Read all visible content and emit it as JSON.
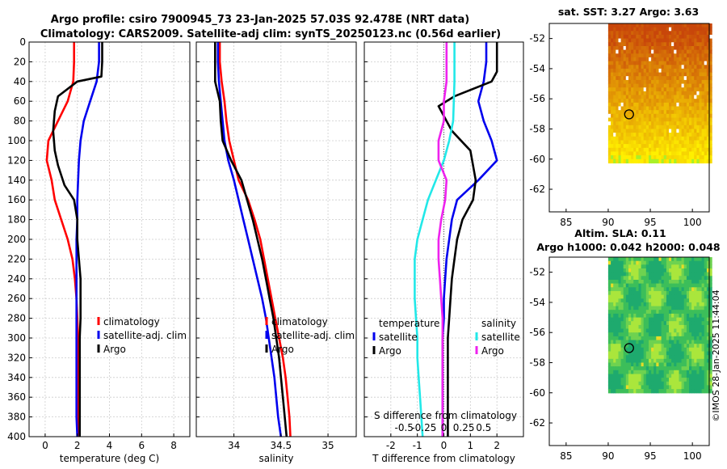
{
  "title_line1": "Argo profile: csiro 7900945_73 23-Jan-2025 57.03S 92.478E (NRT data)",
  "title_line2": "Climatology: CARS2009. Satellite-adj clim: synTS_20250123.nc (0.56d earlier)",
  "colors": {
    "climatology": "#ff0000",
    "satellite": "#0000ee",
    "argo": "#000000",
    "sal_diff": "#22e8e8",
    "sal_sat": "#ee22ee",
    "grid": "#cccccc"
  },
  "chart_data": [
    {
      "type": "line",
      "name": "temperature",
      "xlabel": "temperature (deg C)",
      "ylabel": "",
      "xlim": [
        -1,
        9
      ],
      "ylim": [
        400,
        0
      ],
      "xticks": [
        0,
        2,
        4,
        6,
        8
      ],
      "yticks": [
        0,
        20,
        40,
        60,
        80,
        100,
        120,
        140,
        160,
        180,
        200,
        220,
        240,
        260,
        280,
        300,
        320,
        340,
        360,
        380,
        400
      ],
      "legend": [
        "climatology",
        "satellite-adj. clim",
        "Argo"
      ],
      "legend_position": "lower-right",
      "series": [
        {
          "name": "climatology",
          "color": "#ff0000",
          "points": [
            [
              1.8,
              0
            ],
            [
              1.8,
              20
            ],
            [
              1.75,
              40
            ],
            [
              1.4,
              60
            ],
            [
              0.8,
              80
            ],
            [
              0.2,
              100
            ],
            [
              0.1,
              120
            ],
            [
              0.4,
              140
            ],
            [
              0.6,
              160
            ],
            [
              1.0,
              180
            ],
            [
              1.4,
              200
            ],
            [
              1.7,
              220
            ],
            [
              1.85,
              240
            ],
            [
              1.95,
              260
            ],
            [
              2.0,
              280
            ],
            [
              2.05,
              300
            ],
            [
              2.05,
              320
            ],
            [
              2.05,
              340
            ],
            [
              2.05,
              360
            ],
            [
              2.05,
              380
            ],
            [
              2.05,
              400
            ]
          ]
        },
        {
          "name": "satellite-adj. clim",
          "color": "#0000ee",
          "points": [
            [
              3.35,
              0
            ],
            [
              3.35,
              20
            ],
            [
              3.2,
              40
            ],
            [
              2.8,
              60
            ],
            [
              2.4,
              80
            ],
            [
              2.2,
              100
            ],
            [
              2.1,
              120
            ],
            [
              2.05,
              140
            ],
            [
              2.0,
              160
            ],
            [
              2.0,
              180
            ],
            [
              1.95,
              200
            ],
            [
              1.95,
              220
            ],
            [
              1.95,
              240
            ],
            [
              1.95,
              260
            ],
            [
              1.95,
              280
            ],
            [
              1.95,
              300
            ],
            [
              1.95,
              320
            ],
            [
              1.95,
              340
            ],
            [
              1.95,
              360
            ],
            [
              1.95,
              380
            ],
            [
              2.0,
              400
            ]
          ]
        },
        {
          "name": "Argo",
          "color": "#000000",
          "points": [
            [
              3.55,
              0
            ],
            [
              3.55,
              20
            ],
            [
              3.5,
              35
            ],
            [
              2.0,
              40
            ],
            [
              0.8,
              55
            ],
            [
              0.6,
              70
            ],
            [
              0.5,
              90
            ],
            [
              0.6,
              110
            ],
            [
              0.8,
              125
            ],
            [
              1.2,
              145
            ],
            [
              1.8,
              160
            ],
            [
              2.0,
              180
            ],
            [
              2.0,
              200
            ],
            [
              2.1,
              220
            ],
            [
              2.2,
              240
            ],
            [
              2.2,
              260
            ],
            [
              2.2,
              280
            ],
            [
              2.15,
              300
            ],
            [
              2.15,
              320
            ],
            [
              2.15,
              340
            ],
            [
              2.15,
              360
            ],
            [
              2.15,
              380
            ],
            [
              2.15,
              400
            ]
          ]
        }
      ]
    },
    {
      "type": "line",
      "name": "salinity",
      "xlabel": "salinity",
      "xlim": [
        33.6,
        35.3
      ],
      "ylim": [
        400,
        0
      ],
      "xticks": [
        34,
        34.5,
        35
      ],
      "legend": [
        "climatology",
        "satellite-adj. clim",
        "Argo"
      ],
      "legend_position": "lower-right",
      "series": [
        {
          "name": "climatology",
          "color": "#ff0000",
          "points": [
            [
              33.85,
              0
            ],
            [
              33.85,
              20
            ],
            [
              33.87,
              40
            ],
            [
              33.9,
              60
            ],
            [
              33.92,
              80
            ],
            [
              33.95,
              100
            ],
            [
              34.0,
              120
            ],
            [
              34.05,
              140
            ],
            [
              34.15,
              160
            ],
            [
              34.22,
              180
            ],
            [
              34.28,
              200
            ],
            [
              34.32,
              220
            ],
            [
              34.36,
              240
            ],
            [
              34.4,
              260
            ],
            [
              34.44,
              280
            ],
            [
              34.48,
              300
            ],
            [
              34.52,
              320
            ],
            [
              34.55,
              340
            ],
            [
              34.57,
              360
            ],
            [
              34.59,
              380
            ],
            [
              34.6,
              400
            ]
          ]
        },
        {
          "name": "satellite-adj. clim",
          "color": "#0000ee",
          "points": [
            [
              33.83,
              0
            ],
            [
              33.83,
              20
            ],
            [
              33.84,
              40
            ],
            [
              33.86,
              60
            ],
            [
              33.88,
              80
            ],
            [
              33.9,
              100
            ],
            [
              33.94,
              120
            ],
            [
              34.0,
              140
            ],
            [
              34.05,
              160
            ],
            [
              34.1,
              180
            ],
            [
              34.15,
              200
            ],
            [
              34.2,
              220
            ],
            [
              34.25,
              240
            ],
            [
              34.3,
              260
            ],
            [
              34.34,
              280
            ],
            [
              34.37,
              300
            ],
            [
              34.4,
              320
            ],
            [
              34.43,
              340
            ],
            [
              34.45,
              360
            ],
            [
              34.47,
              380
            ],
            [
              34.5,
              400
            ]
          ]
        },
        {
          "name": "Argo",
          "color": "#000000",
          "points": [
            [
              33.8,
              0
            ],
            [
              33.8,
              20
            ],
            [
              33.8,
              40
            ],
            [
              33.85,
              60
            ],
            [
              33.86,
              80
            ],
            [
              33.88,
              100
            ],
            [
              33.97,
              120
            ],
            [
              34.08,
              140
            ],
            [
              34.14,
              160
            ],
            [
              34.2,
              180
            ],
            [
              34.25,
              200
            ],
            [
              34.3,
              220
            ],
            [
              34.34,
              240
            ],
            [
              34.38,
              260
            ],
            [
              34.42,
              280
            ],
            [
              34.45,
              300
            ],
            [
              34.48,
              320
            ],
            [
              34.5,
              340
            ],
            [
              34.52,
              360
            ],
            [
              34.54,
              380
            ],
            [
              34.56,
              400
            ]
          ]
        }
      ]
    },
    {
      "type": "line",
      "name": "difference",
      "xlabel": "T difference from climatology",
      "xlabel2": "S difference from climatology",
      "xlim": [
        -3,
        3
      ],
      "ylim": [
        400,
        0
      ],
      "xticks": [
        -2,
        -1,
        0,
        1,
        2
      ],
      "xticks2": [
        "-0.5",
        "-0.25",
        "0",
        "0.25",
        "0.5"
      ],
      "legend_left_title": "temperature",
      "legend_right_title": "salinity",
      "legend_left": [
        "satellite",
        "Argo"
      ],
      "legend_right": [
        "satellite",
        "Argo"
      ],
      "legend_position": "lower",
      "series": [
        {
          "name": "temperature satellite",
          "color": "#0000ee",
          "points": [
            [
              1.6,
              0
            ],
            [
              1.6,
              20
            ],
            [
              1.5,
              40
            ],
            [
              1.3,
              60
            ],
            [
              1.5,
              80
            ],
            [
              1.8,
              100
            ],
            [
              2.0,
              120
            ],
            [
              1.3,
              140
            ],
            [
              0.5,
              160
            ],
            [
              0.3,
              180
            ],
            [
              0.2,
              200
            ],
            [
              0.1,
              220
            ],
            [
              0.05,
              240
            ],
            [
              0.0,
              260
            ],
            [
              0,
              280
            ],
            [
              -0.05,
              300
            ],
            [
              -0.05,
              320
            ],
            [
              -0.05,
              340
            ],
            [
              -0.05,
              360
            ],
            [
              -0.05,
              380
            ],
            [
              -0.05,
              400
            ]
          ]
        },
        {
          "name": "temperature Argo",
          "color": "#000000",
          "points": [
            [
              2.0,
              0
            ],
            [
              2.0,
              30
            ],
            [
              1.8,
              40
            ],
            [
              0.4,
              55
            ],
            [
              -0.2,
              65
            ],
            [
              0.1,
              80
            ],
            [
              0.3,
              90
            ],
            [
              1.0,
              110
            ],
            [
              1.2,
              140
            ],
            [
              1.1,
              160
            ],
            [
              0.7,
              180
            ],
            [
              0.5,
              200
            ],
            [
              0.4,
              220
            ],
            [
              0.3,
              240
            ],
            [
              0.25,
              260
            ],
            [
              0.2,
              280
            ],
            [
              0.15,
              300
            ],
            [
              0.15,
              320
            ],
            [
              0.15,
              340
            ],
            [
              0.15,
              360
            ],
            [
              0.15,
              380
            ],
            [
              0.15,
              400
            ]
          ]
        },
        {
          "name": "salinity satellite",
          "color": "#22e8e8",
          "points": [
            [
              0.4,
              0
            ],
            [
              0.4,
              40
            ],
            [
              0.35,
              80
            ],
            [
              0.2,
              100
            ],
            [
              0.0,
              120
            ],
            [
              -0.3,
              140
            ],
            [
              -0.6,
              160
            ],
            [
              -0.8,
              180
            ],
            [
              -1.0,
              200
            ],
            [
              -1.1,
              220
            ],
            [
              -1.1,
              240
            ],
            [
              -1.1,
              260
            ],
            [
              -1.05,
              280
            ],
            [
              -1.0,
              300
            ],
            [
              -1.0,
              320
            ],
            [
              -0.95,
              340
            ],
            [
              -0.9,
              360
            ],
            [
              -0.85,
              380
            ],
            [
              -0.8,
              400
            ]
          ]
        },
        {
          "name": "salinity Argo",
          "color": "#ee22ee",
          "points": [
            [
              0.1,
              0
            ],
            [
              0.1,
              40
            ],
            [
              0.0,
              60
            ],
            [
              0.0,
              80
            ],
            [
              -0.2,
              100
            ],
            [
              -0.2,
              120
            ],
            [
              0.1,
              140
            ],
            [
              0.05,
              160
            ],
            [
              -0.1,
              180
            ],
            [
              -0.2,
              200
            ],
            [
              -0.2,
              220
            ],
            [
              -0.15,
              240
            ],
            [
              -0.1,
              260
            ],
            [
              -0.05,
              280
            ],
            [
              -0.05,
              300
            ],
            [
              -0.05,
              320
            ],
            [
              -0.05,
              340
            ],
            [
              -0.05,
              360
            ],
            [
              -0.05,
              380
            ],
            [
              -0.05,
              400
            ]
          ]
        }
      ]
    },
    {
      "type": "heatmap",
      "name": "sst-map",
      "title": "sat. SST: 3.27 Argo: 3.63",
      "xlim": [
        83,
        102
      ],
      "ylim": [
        -63.5,
        -51
      ],
      "xticks": [
        85,
        90,
        95,
        100
      ],
      "yticks": [
        -52,
        -54,
        -56,
        -58,
        -60,
        -62
      ],
      "data_extent_lon": [
        90,
        102
      ],
      "data_extent_lat": [
        -60.2,
        -51
      ],
      "float_position": [
        92.48,
        -57.03
      ]
    },
    {
      "type": "heatmap",
      "name": "sla-map",
      "title": "Altim. SLA: 0.11",
      "subtitle": "Argo h1000: 0.042 h2000: 0.048",
      "xlim": [
        83,
        102
      ],
      "ylim": [
        -63.5,
        -51
      ],
      "xticks": [
        85,
        90,
        95,
        100
      ],
      "yticks": [
        -52,
        -54,
        -56,
        -58,
        -60,
        -62
      ],
      "data_extent_lon": [
        90,
        102
      ],
      "data_extent_lat": [
        -60,
        -51
      ],
      "float_position": [
        92.48,
        -57.03
      ]
    }
  ],
  "watermark": "©IMOS 28-Jan-2025 11:44:04"
}
